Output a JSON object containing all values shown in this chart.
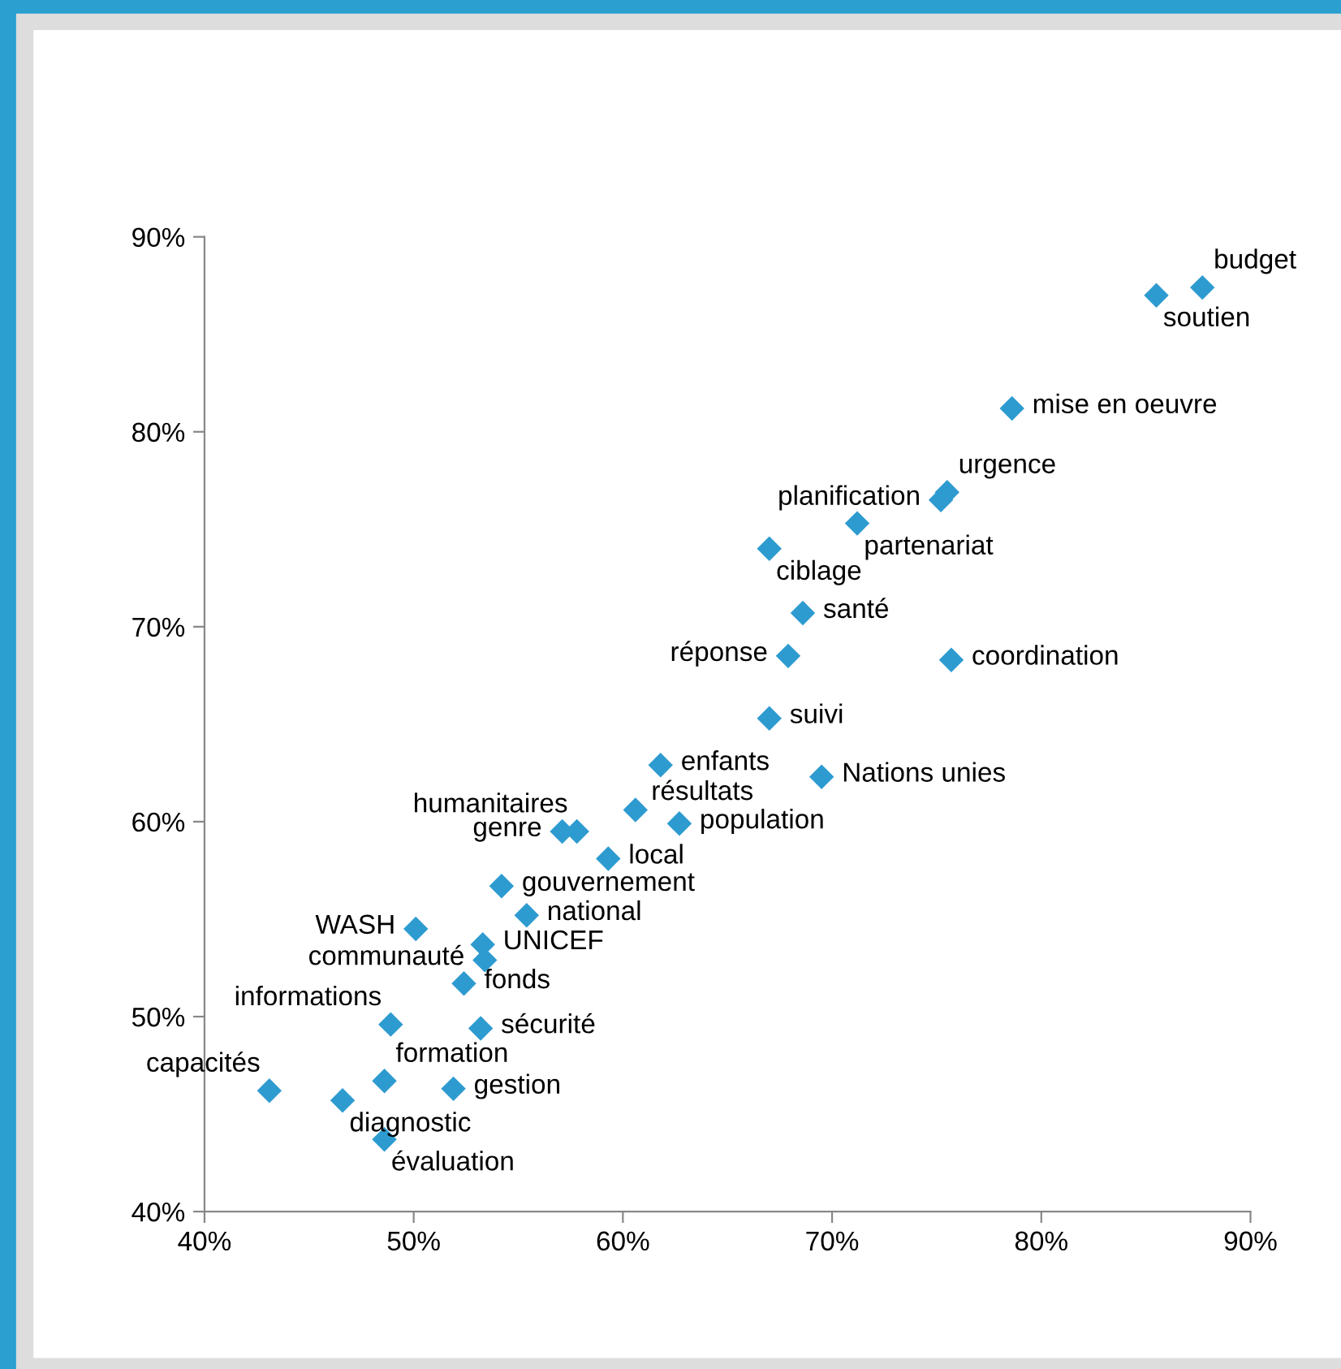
{
  "chart_data": {
    "type": "scatter",
    "marker": "diamond",
    "grid": false,
    "xlim": [
      40,
      90
    ],
    "ylim": [
      40,
      90
    ],
    "xticks": [
      {
        "value": 40,
        "label": "40%"
      },
      {
        "value": 50,
        "label": "50%"
      },
      {
        "value": 60,
        "label": "60%"
      },
      {
        "value": 70,
        "label": "70%"
      },
      {
        "value": 80,
        "label": "80%"
      },
      {
        "value": 90,
        "label": "90%"
      }
    ],
    "yticks": [
      {
        "value": 40,
        "label": "40%"
      },
      {
        "value": 50,
        "label": "50%"
      },
      {
        "value": 60,
        "label": "60%"
      },
      {
        "value": 70,
        "label": "70%"
      },
      {
        "value": 80,
        "label": "80%"
      },
      {
        "value": 90,
        "label": "90%"
      }
    ],
    "series": [
      {
        "color": "#2e9bd0",
        "x": [
          87.7,
          85.5,
          78.6,
          75.5,
          75.2,
          71.2,
          67.0,
          68.6,
          67.9,
          75.7,
          67.0,
          61.8,
          69.5,
          60.6,
          62.7,
          57.8,
          57.1,
          59.3,
          54.2,
          55.4,
          50.1,
          53.3,
          53.4,
          52.4,
          48.9,
          53.2,
          48.6,
          51.9,
          43.1,
          46.6,
          48.6
        ],
        "values": [
          87.4,
          87.0,
          81.2,
          76.9,
          76.5,
          75.3,
          74.0,
          70.7,
          68.5,
          68.3,
          65.3,
          62.9,
          62.3,
          60.6,
          59.9,
          59.5,
          59.5,
          58.1,
          56.7,
          55.2,
          54.5,
          53.7,
          52.9,
          51.7,
          49.6,
          49.4,
          46.7,
          46.3,
          46.2,
          45.7,
          43.7
        ],
        "value_labels": [
          "budget",
          "soutien",
          "mise en oeuvre",
          "urgence",
          "planification",
          "partenariat",
          "ciblage",
          "santé",
          "réponse",
          "coordination",
          "suivi",
          "enfants",
          "Nations unies",
          "résultats",
          "population",
          "humanitaires",
          "genre",
          "local",
          "gouvernement",
          "national",
          "WASH",
          "UNICEF",
          "communauté",
          "fonds",
          "informations",
          "sécurité",
          "formation",
          "gestion",
          "capacités",
          "diagnostic",
          "évaluation"
        ]
      }
    ]
  }
}
